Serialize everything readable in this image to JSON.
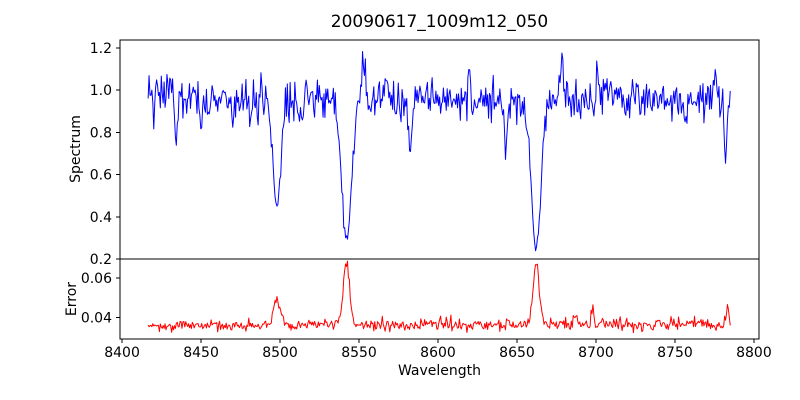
{
  "chart_data": {
    "type": "line",
    "title": "20090617_1009m12_050",
    "xlabel": "Wavelength",
    "grid": false,
    "legend": null,
    "background": "#ffffff",
    "axis_color": "#000000",
    "xlim": [
      8398.7,
      8803.2
    ],
    "xticks": {
      "values": [
        8400,
        8450,
        8500,
        8550,
        8600,
        8650,
        8700,
        8750,
        8800
      ],
      "labels": [
        "8400",
        "8450",
        "8500",
        "8550",
        "8600",
        "8650",
        "8700",
        "8750",
        "8800"
      ]
    },
    "x_data_range": [
      8416.5,
      8785.0
    ],
    "n_points": 620,
    "panels": [
      {
        "name": "spectrum",
        "ylabel": "Spectrum",
        "color": "#0000ff",
        "ylim": [
          0.2,
          1.238
        ],
        "yticks": {
          "values": [
            0.2,
            0.4,
            0.6,
            0.8,
            1.0,
            1.2
          ],
          "labels": [
            "0.2",
            "0.4",
            "0.6",
            "0.8",
            "1.0",
            "1.2"
          ]
        },
        "continuum": 0.958,
        "wiggle": [
          0.01,
          55,
          0.006,
          23
        ],
        "noise_sigma": 0.048,
        "seed": 1234,
        "absorption_lines": [
          {
            "center": 8434.0,
            "depth": 0.23,
            "sigma": 1.0
          },
          {
            "center": 8450.0,
            "depth": 0.16,
            "sigma": 0.9
          },
          {
            "center": 8470.0,
            "depth": 0.13,
            "sigma": 0.8
          },
          {
            "center": 8481.0,
            "depth": 0.13,
            "sigma": 0.8
          },
          {
            "center": 8498.0,
            "depth": 0.5,
            "sigma": 2.6
          },
          {
            "center": 8513.0,
            "depth": 0.12,
            "sigma": 1.0
          },
          {
            "center": 8542.1,
            "depth": 0.675,
            "sigma": 3.2
          },
          {
            "center": 8582.5,
            "depth": 0.25,
            "sigma": 1.0
          },
          {
            "center": 8643.0,
            "depth": 0.24,
            "sigma": 0.9
          },
          {
            "center": 8662.1,
            "depth": 0.7,
            "sigma": 3.0
          },
          {
            "center": 8757.0,
            "depth": 0.17,
            "sigma": 0.9
          },
          {
            "center": 8782.0,
            "depth": 0.27,
            "sigma": 0.9
          }
        ],
        "emission_spikes": [
          {
            "center": 8432.0,
            "height": 0.13,
            "sigma": 0.8
          },
          {
            "center": 8553.0,
            "height": 0.13,
            "sigma": 0.9
          },
          {
            "center": 8620.0,
            "height": 0.12,
            "sigma": 0.8
          },
          {
            "center": 8678.5,
            "height": 0.21,
            "sigma": 0.9
          },
          {
            "center": 8701.0,
            "height": 0.13,
            "sigma": 0.8
          },
          {
            "center": 8776.0,
            "height": 0.14,
            "sigma": 0.8
          }
        ]
      },
      {
        "name": "error",
        "ylabel": "Error",
        "color": "#ff0000",
        "ylim": [
          0.029,
          0.0695
        ],
        "yticks": {
          "values": [
            0.04,
            0.06
          ],
          "labels": [
            "0.04",
            "0.06"
          ]
        },
        "baseline_start": 0.0357,
        "baseline_end": 0.0367,
        "noise_sigma": 0.0011,
        "seed": 99,
        "peaks": [
          {
            "center": 8498.0,
            "height": 0.0135,
            "sigma": 2.2
          },
          {
            "center": 8542.1,
            "height": 0.032,
            "sigma": 2.0
          },
          {
            "center": 8662.1,
            "height": 0.0305,
            "sigma": 2.0
          },
          {
            "center": 8687.0,
            "height": 0.006,
            "sigma": 0.8
          },
          {
            "center": 8698.0,
            "height": 0.0075,
            "sigma": 0.8
          },
          {
            "center": 8783.0,
            "height": 0.009,
            "sigma": 0.7
          }
        ]
      }
    ]
  }
}
